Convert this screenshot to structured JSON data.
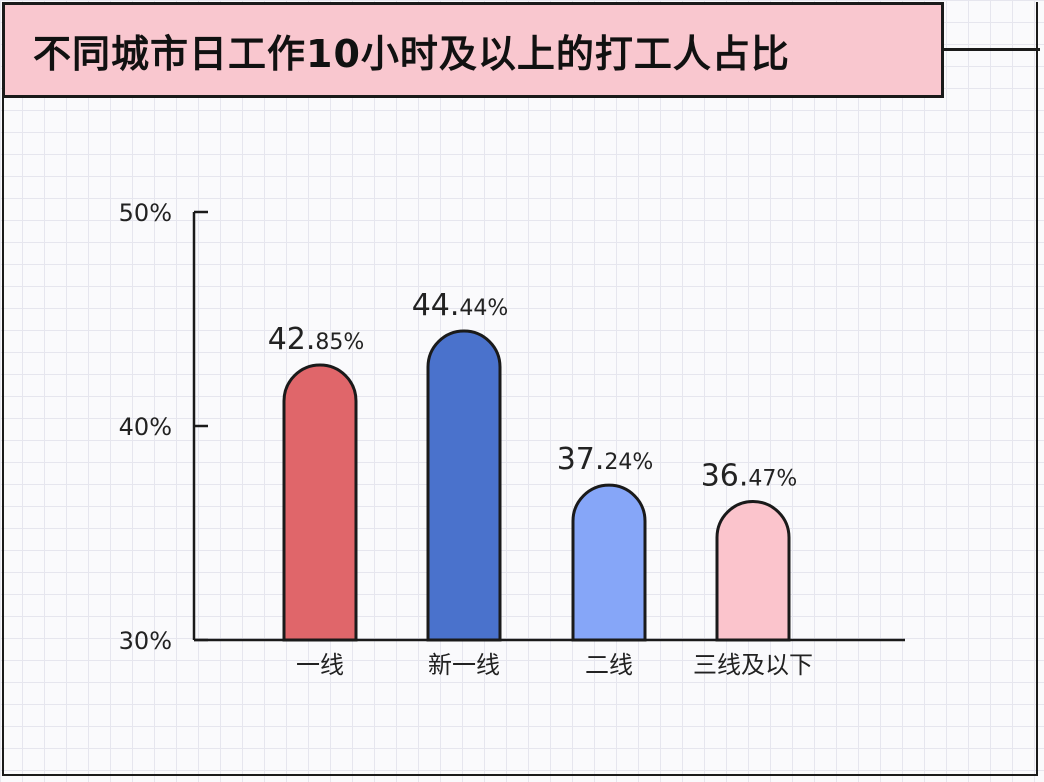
{
  "title": "不同城市日工作10小时及以上的打工人占比",
  "chart_data": {
    "type": "bar",
    "title": "不同城市日工作10小时及以上的打工人占比",
    "categories": [
      "一线",
      "新一线",
      "二线",
      "三线及以下"
    ],
    "values": [
      42.85,
      44.44,
      37.24,
      36.47
    ],
    "value_labels": [
      {
        "main": "42.",
        "small": "85%"
      },
      {
        "main": "44.",
        "small": "44%"
      },
      {
        "main": "37.",
        "small": "24%"
      },
      {
        "main": "36.",
        "small": "47%"
      }
    ],
    "colors": [
      "#e0666a",
      "#4a72cc",
      "#86a6f8",
      "#fbc4cc"
    ],
    "ylim": [
      30,
      50
    ],
    "yticks": [
      30,
      40,
      50
    ],
    "ytick_labels": [
      "30%",
      "40%",
      "50%"
    ],
    "xlabel": "",
    "ylabel": "",
    "grid": true,
    "legend": "none"
  }
}
